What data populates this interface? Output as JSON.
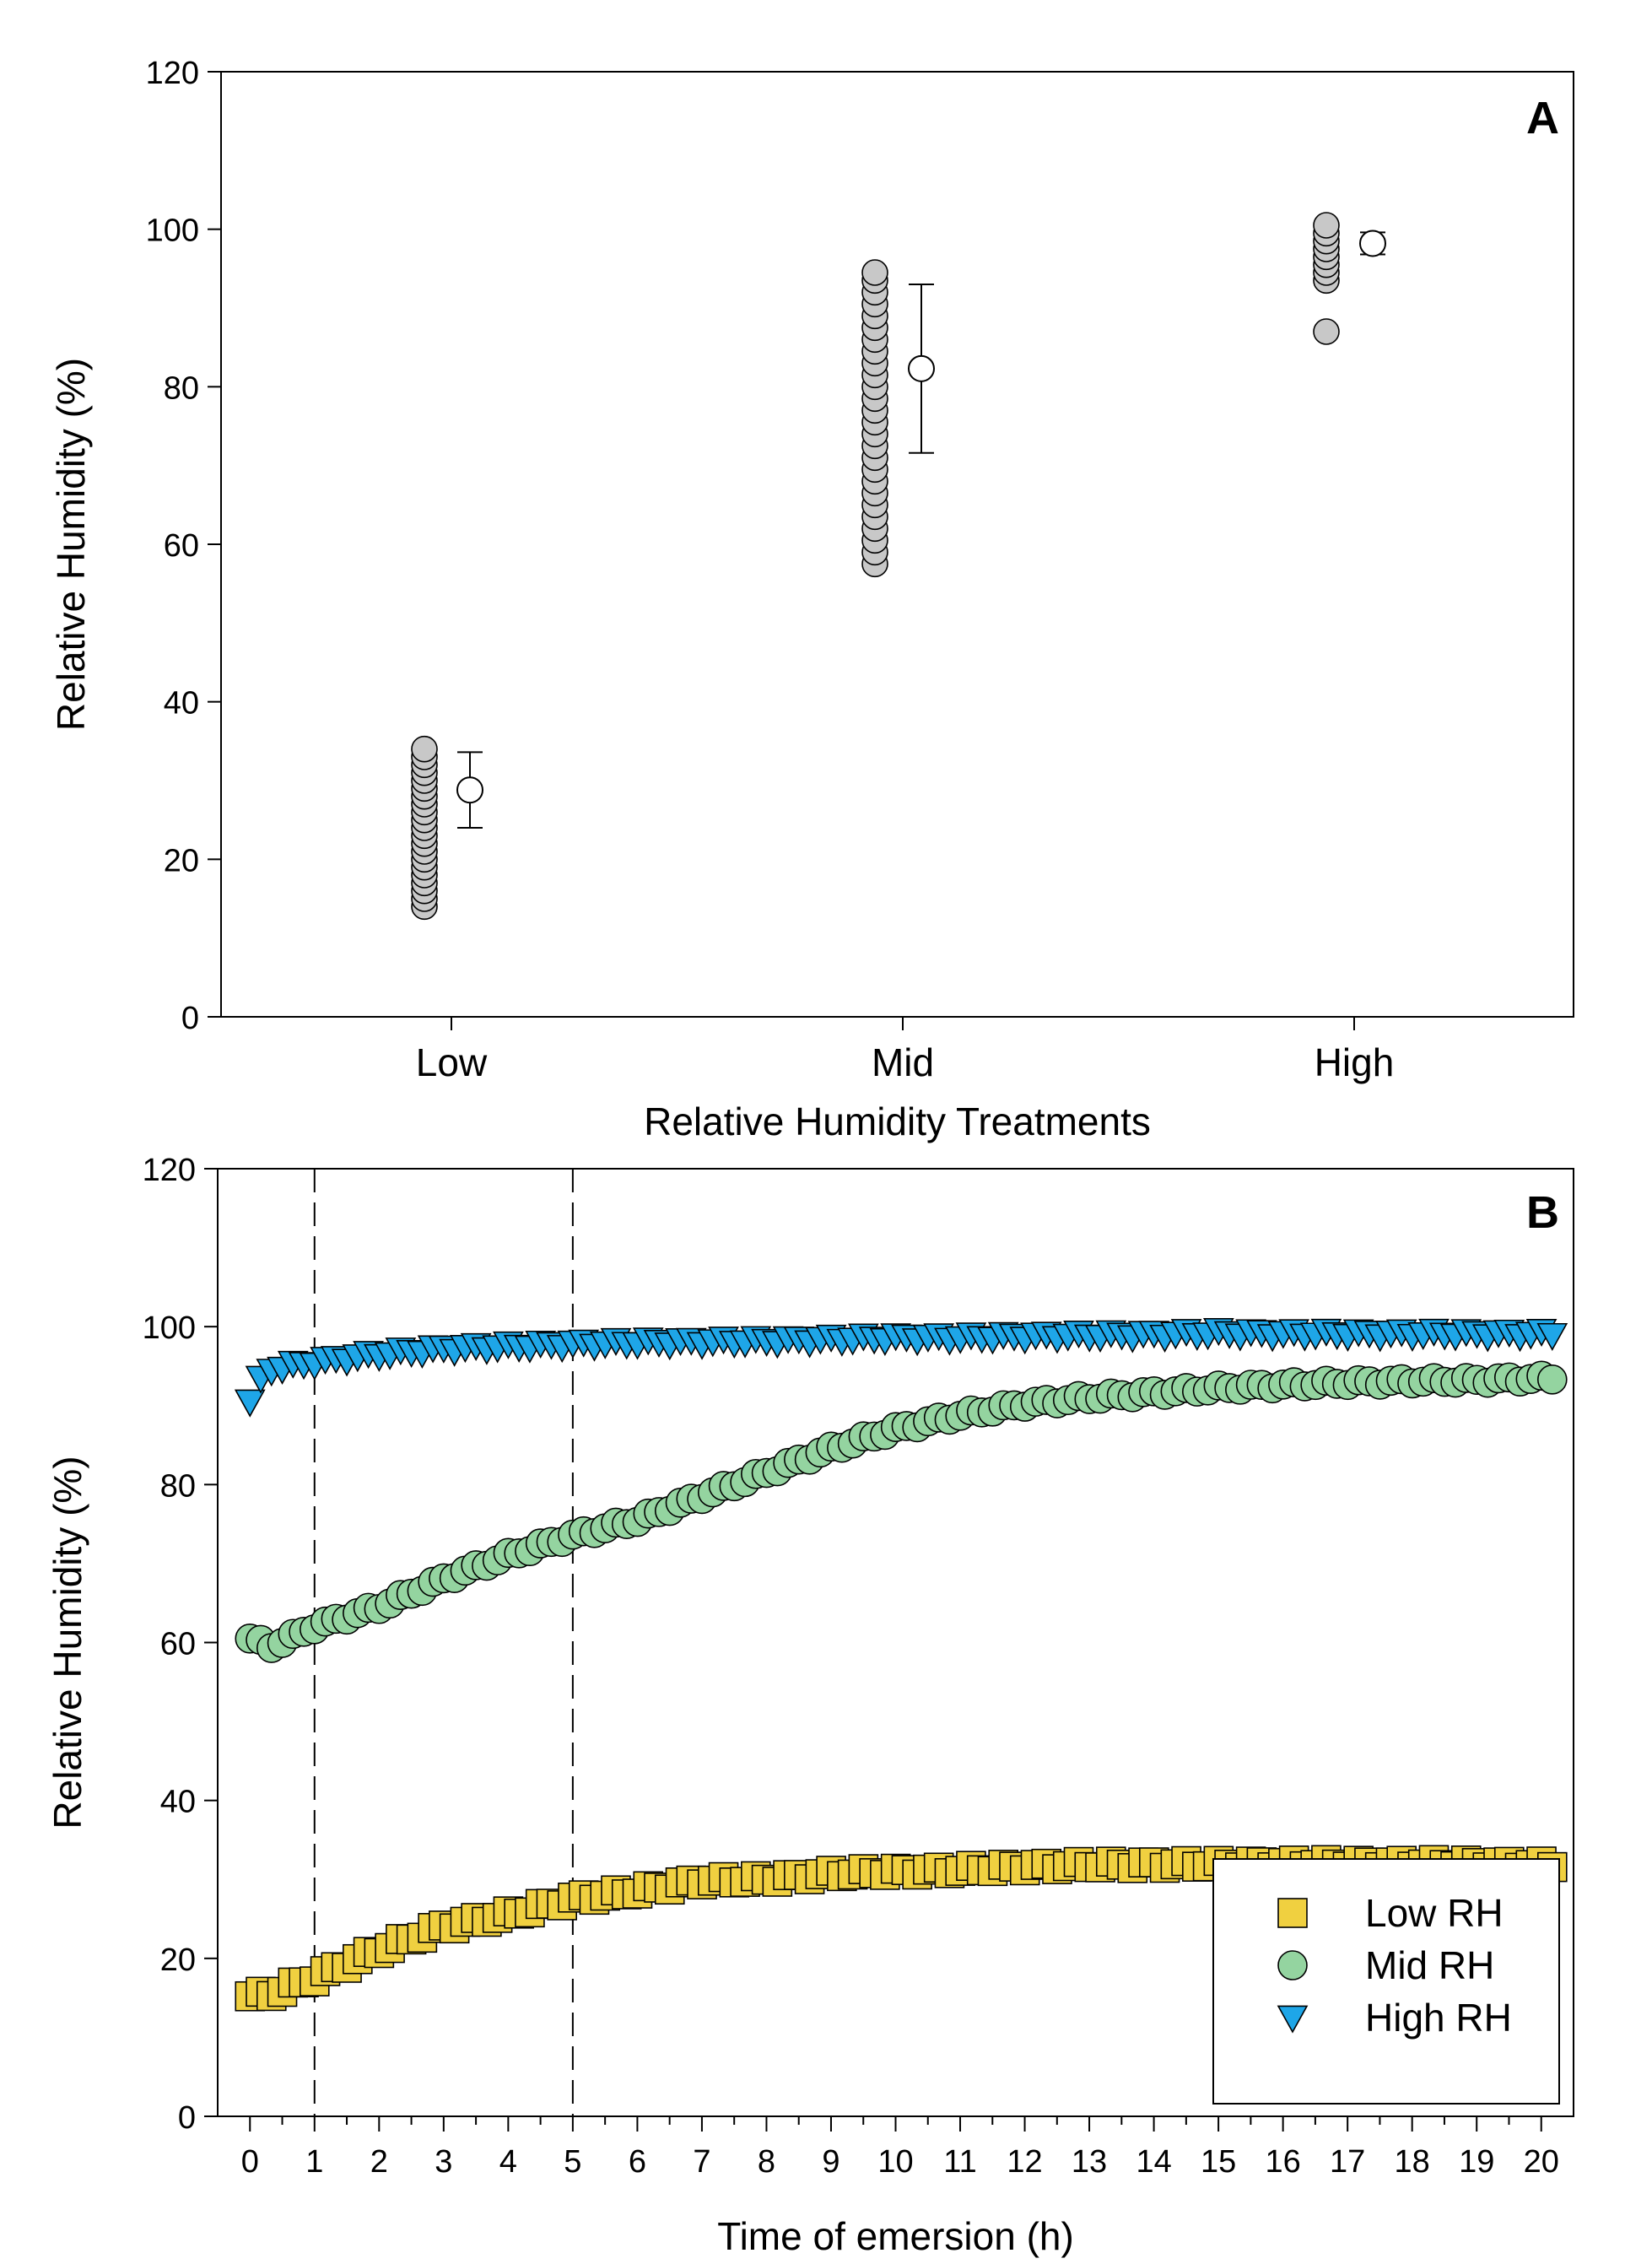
{
  "chart_data": [
    {
      "panel": "A",
      "type": "scatter",
      "panel_label": "A",
      "xlabel": "Relative Humidity Treatments",
      "ylabel": "Relative Humidity (%)",
      "ylim": [
        0,
        120
      ],
      "yticks": [
        0,
        20,
        40,
        60,
        80,
        100,
        120
      ],
      "categories": [
        "Low",
        "Mid",
        "High"
      ],
      "points": {
        "Low": [
          14,
          15,
          16,
          17,
          18,
          19,
          20,
          21,
          22,
          23,
          24,
          25,
          26,
          27,
          28,
          29,
          30,
          31,
          32,
          33,
          34
        ],
        "Mid": [
          57.5,
          59,
          60.5,
          62,
          63.5,
          65,
          66.5,
          68,
          69.5,
          71,
          72.5,
          74,
          75.5,
          77,
          78.5,
          80,
          81.5,
          83,
          84.5,
          86,
          87.5,
          89,
          90.5,
          92,
          93.5,
          94.5
        ],
        "High": [
          87,
          93.5,
          94.5,
          95.5,
          96.5,
          97.5,
          98.5,
          99.5,
          100.5
        ]
      },
      "summary": [
        {
          "category": "Low",
          "mean": 28.8,
          "lower": 24,
          "upper": 33.6
        },
        {
          "category": "Mid",
          "mean": 82.3,
          "lower": 71.6,
          "upper": 93
        },
        {
          "category": "High",
          "mean": 98.2,
          "lower": 96.8,
          "upper": 99.6
        }
      ],
      "colors": {
        "points": "#c8c8c8",
        "summary": "#ffffff"
      }
    },
    {
      "panel": "B",
      "type": "scatter",
      "panel_label": "B",
      "xlabel": "Time of emersion (h)",
      "ylabel": "Relative Humidity (%)",
      "xlim": [
        -0.5,
        20.5
      ],
      "ylim": [
        0,
        120
      ],
      "xticks": [
        0,
        1,
        2,
        3,
        4,
        5,
        6,
        7,
        8,
        9,
        10,
        11,
        12,
        13,
        14,
        15,
        16,
        17,
        18,
        19,
        20
      ],
      "yticks": [
        0,
        20,
        40,
        60,
        80,
        100,
        120
      ],
      "reference_lines_x": [
        1,
        5
      ],
      "sampling_interval_h": 0.1667,
      "legend_position": "bottom-right",
      "series": [
        {
          "name": "Low RH",
          "marker": "square",
          "color": "#f0d040",
          "anchors": [
            [
              0,
              15.2
            ],
            [
              0.33,
              15.5
            ],
            [
              1,
              17.5
            ],
            [
              2,
              21
            ],
            [
              3,
              24
            ],
            [
              4,
              25.5
            ],
            [
              5,
              27.5
            ],
            [
              6,
              28.5
            ],
            [
              7,
              29.8
            ],
            [
              8,
              30
            ],
            [
              9,
              30.7
            ],
            [
              10,
              31
            ],
            [
              11,
              31.2
            ],
            [
              12,
              31.6
            ],
            [
              13,
              31.8
            ],
            [
              14,
              31.9
            ],
            [
              15,
              31.9
            ],
            [
              16,
              32
            ],
            [
              17,
              32
            ],
            [
              18,
              32
            ],
            [
              19,
              32
            ],
            [
              20.2,
              31.8
            ]
          ]
        },
        {
          "name": "Mid RH",
          "marker": "circle",
          "color": "#94d4a0",
          "anchors": [
            [
              0,
              60.5
            ],
            [
              0.33,
              59.5
            ],
            [
              1,
              62
            ],
            [
              2,
              64.5
            ],
            [
              3,
              68
            ],
            [
              4,
              71
            ],
            [
              5,
              73.5
            ],
            [
              6,
              75.5
            ],
            [
              7,
              78.5
            ],
            [
              8,
              81.5
            ],
            [
              9,
              84.5
            ],
            [
              10,
              87
            ],
            [
              11,
              88.8
            ],
            [
              12,
              90.2
            ],
            [
              13,
              91
            ],
            [
              14,
              91.6
            ],
            [
              15,
              92.2
            ],
            [
              16,
              92.6
            ],
            [
              17,
              92.9
            ],
            [
              18,
              93.1
            ],
            [
              19,
              93.2
            ],
            [
              20.2,
              93.5
            ]
          ]
        },
        {
          "name": "High RH",
          "marker": "triangle-down",
          "color": "#1ea6e8",
          "anchors": [
            [
              0,
              90.5
            ],
            [
              0.25,
              94.5
            ],
            [
              1,
              95.5
            ],
            [
              2,
              96.5
            ],
            [
              3,
              97.2
            ],
            [
              4,
              97.5
            ],
            [
              5,
              97.8
            ],
            [
              6,
              98
            ],
            [
              7,
              98.1
            ],
            [
              8,
              98.2
            ],
            [
              9,
              98.4
            ],
            [
              10,
              98.6
            ],
            [
              11,
              98.6
            ],
            [
              12,
              98.8
            ],
            [
              13,
              98.9
            ],
            [
              14,
              99
            ],
            [
              15,
              99.2
            ],
            [
              16,
              99.1
            ],
            [
              17,
              99.1
            ],
            [
              18,
              99.1
            ],
            [
              19,
              99.1
            ],
            [
              20.2,
              99.1
            ]
          ]
        }
      ]
    }
  ]
}
